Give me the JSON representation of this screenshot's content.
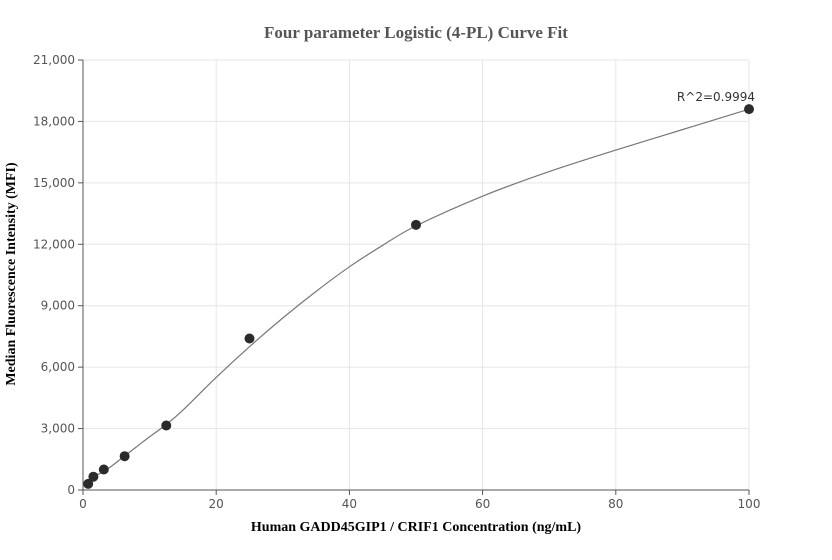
{
  "chart_data": {
    "type": "scatter",
    "title": "Four parameter Logistic (4-PL) Curve Fit",
    "xlabel": "Human GADD45GIP1 / CRIF1 Concentration (ng/mL)",
    "ylabel": "Median Fluorescence Intensity (MFI)",
    "xlim": [
      0,
      100
    ],
    "ylim": [
      0,
      21000
    ],
    "x_ticks": [
      0,
      20,
      40,
      60,
      80,
      100
    ],
    "x_tick_labels": [
      "0",
      "20",
      "40",
      "60",
      "80",
      "100"
    ],
    "y_ticks": [
      0,
      3000,
      6000,
      9000,
      12000,
      15000,
      18000,
      21000
    ],
    "y_tick_labels": [
      "0",
      "3,000",
      "6,000",
      "9,000",
      "12,000",
      "15,000",
      "18,000",
      "21,000"
    ],
    "grid": true,
    "series": [
      {
        "x": [
          0.78,
          1.56,
          3.125,
          6.25,
          12.5,
          25,
          50,
          100
        ],
        "y": [
          300,
          650,
          1000,
          1650,
          3150,
          7400,
          12950,
          18600
        ]
      }
    ],
    "fit_curve": {
      "model": "4PL",
      "x": [
        0,
        2,
        4,
        6,
        8,
        10,
        12.5,
        15,
        20,
        25,
        30,
        35,
        40,
        45,
        50,
        60,
        70,
        80,
        90,
        100
      ],
      "y": [
        250,
        700,
        1100,
        1600,
        2100,
        2600,
        3200,
        3900,
        5500,
        7000,
        8400,
        9700,
        10900,
        11950,
        12900,
        14350,
        15550,
        16600,
        17600,
        18600
      ]
    },
    "annotations": [
      {
        "text": "R^2=0.9994",
        "x": 100,
        "y": 18600
      }
    ]
  }
}
